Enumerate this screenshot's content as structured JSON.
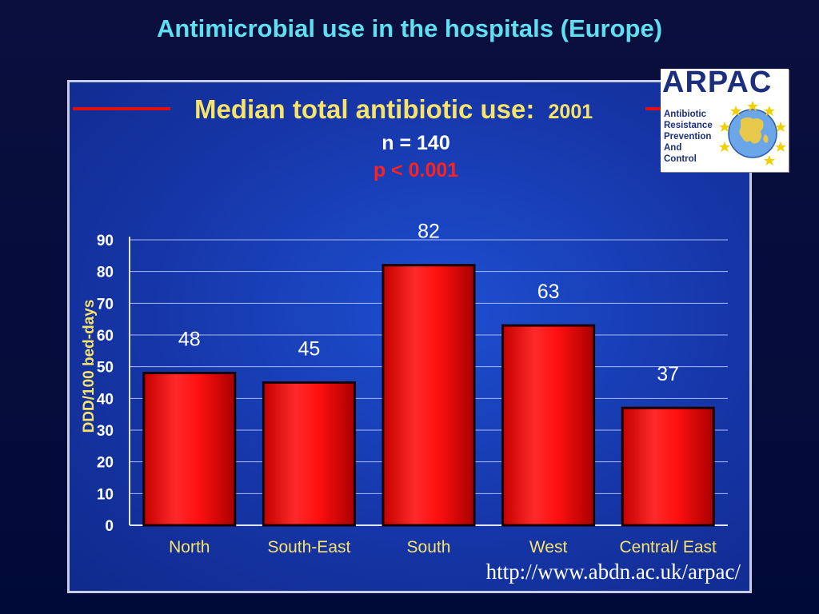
{
  "slide": {
    "title": "Antimicrobial use in the hospitals (Europe)",
    "url": "http://www.abdn.ac.uk/arpac/"
  },
  "logo": {
    "word": "ARPAC",
    "lines": [
      "Antibiotic",
      "Resistance",
      "Prevention",
      "And",
      "Control"
    ],
    "icon": "europe-globe-stars-icon"
  },
  "chart_data": {
    "type": "bar",
    "title": "Median total antibiotic use:",
    "title_year": "2001",
    "subtitle": "n = 140",
    "p_value": "p < 0.001",
    "ylabel": "DDD/100 bed-days",
    "xlabel": "",
    "ylim": [
      0,
      90
    ],
    "yticks": [
      0,
      10,
      20,
      30,
      40,
      50,
      60,
      70,
      80,
      90
    ],
    "grid": true,
    "categories": [
      "North",
      "South-East",
      "South",
      "West",
      "Central/ East"
    ],
    "values": [
      48,
      45,
      82,
      63,
      37
    ],
    "data_labels": [
      "48",
      "45",
      "82",
      "63",
      "37"
    ],
    "bar_color": "#ff1a1a",
    "title_color": "#f7e36a",
    "p_value_color": "#ff2020"
  }
}
